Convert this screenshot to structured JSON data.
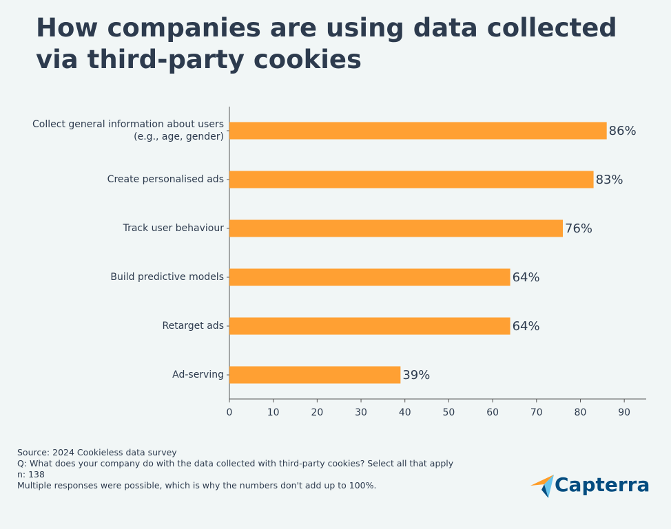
{
  "chart_data": {
    "type": "bar",
    "title": "How companies are using data collected via third-party cookies",
    "categories": [
      "Collect general information about users\n(e.g., age, gender)",
      "Create personalised ads",
      "Track user behaviour",
      "Build predictive models",
      "Retarget ads",
      "Ad-serving"
    ],
    "values": [
      86,
      83,
      76,
      64,
      64,
      39
    ],
    "value_labels": [
      "86%",
      "83%",
      "76%",
      "64%",
      "64%",
      "39%"
    ],
    "color": "#ffa033",
    "xlim": [
      0,
      95
    ],
    "xticks": [
      0,
      10,
      20,
      30,
      40,
      50,
      60,
      70,
      80,
      90
    ]
  },
  "footer": {
    "notes": [
      "Source: 2024 Cookieless data survey",
      "Q: What does your company do with the data collected with third-party cookies? Select all that apply",
      "n: 138",
      "Multiple responses were possible, which is why the numbers don't add up to 100%."
    ],
    "logo": "Capterra"
  }
}
